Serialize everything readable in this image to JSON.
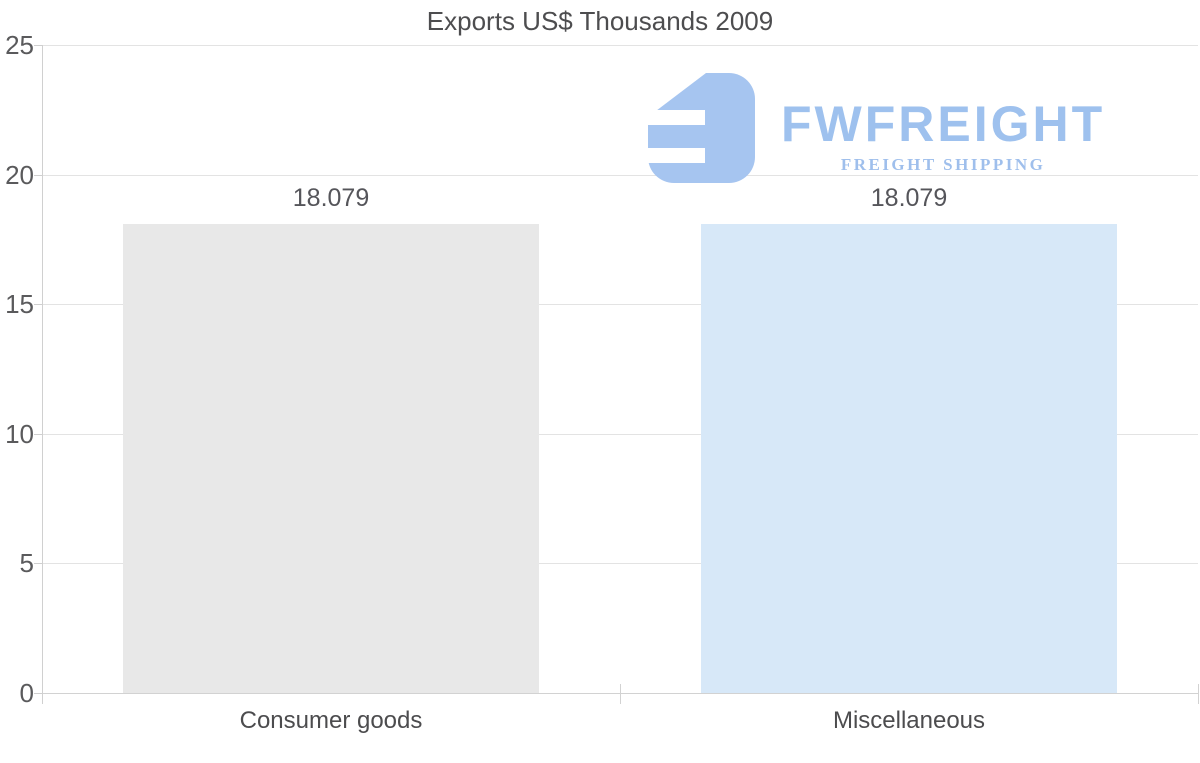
{
  "title": "Exports US$ Thousands 2009",
  "logo": {
    "brand": "FWFREIGHT",
    "tagline": "FREIGHT SHIPPING",
    "icon": "fwfreight-logo-icon",
    "brand_color": "#9ec1ee",
    "icon_color": "#a6c5f0"
  },
  "chart_data": {
    "type": "bar",
    "title": "Exports US$ Thousands 2009",
    "categories": [
      "Consumer goods",
      "Miscellaneous"
    ],
    "values": [
      18.079,
      18.079
    ],
    "value_labels": [
      "18.079",
      "18.079"
    ],
    "bar_colors": [
      "#e8e8e8",
      "#d7e8f8"
    ],
    "xlabel": "",
    "ylabel": "",
    "ylim": [
      0,
      25
    ],
    "yticks": [
      0,
      5,
      10,
      15,
      20,
      25
    ],
    "grid": "horizontal",
    "legend": "none",
    "background": "#ffffff"
  }
}
